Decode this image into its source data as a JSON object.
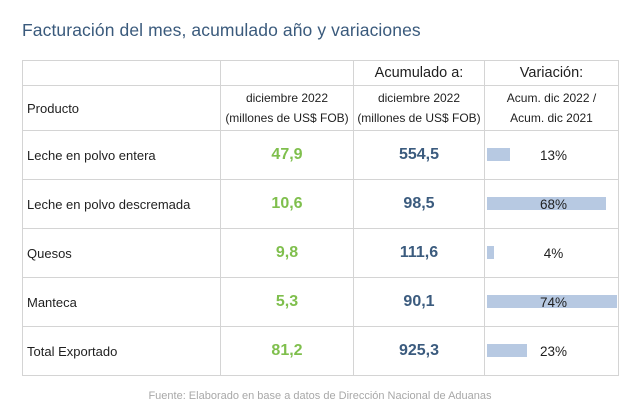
{
  "title": "Facturación del mes, acumulado año y variaciones",
  "header": {
    "product": "Producto",
    "month_line1": "diciembre 2022",
    "month_line2": "(millones de US$ FOB)",
    "accum_title": "Acumulado a:",
    "accum_line1": "diciembre 2022",
    "accum_line2": "(millones de US$ FOB)",
    "var_title": "Variación:",
    "var_line1": "Acum. dic 2022 /",
    "var_line2": "Acum. dic 2021"
  },
  "rows": [
    {
      "product": "Leche en polvo entera",
      "month": "47,9",
      "accum": "554,5",
      "var": "13%",
      "var_value": 13
    },
    {
      "product": "Leche en polvo descremada",
      "month": "10,6",
      "accum": "98,5",
      "var": "68%",
      "var_value": 68
    },
    {
      "product": "Quesos",
      "month": "9,8",
      "accum": "111,6",
      "var": "4%",
      "var_value": 4
    },
    {
      "product": "Manteca",
      "month": "5,3",
      "accum": "90,1",
      "var": "74%",
      "var_value": 74
    },
    {
      "product": "Total Exportado",
      "month": "81,2",
      "accum": "925,3",
      "var": "23%",
      "var_value": 23
    }
  ],
  "colors": {
    "month_value": "#7fbf4d",
    "accum_value": "#3b5b7e",
    "var_bar": "#b7c9e2"
  },
  "source": "Fuente: Elaborado en base a datos de Dirección Nacional de Aduanas"
}
